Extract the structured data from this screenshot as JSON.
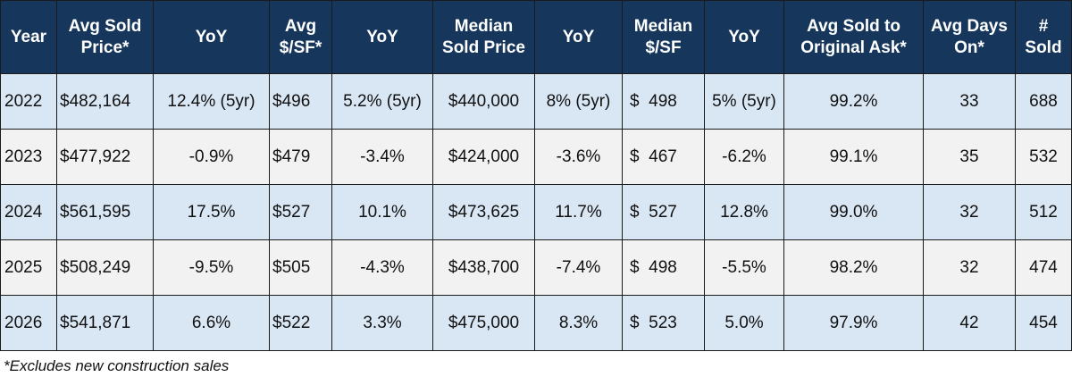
{
  "table": {
    "headers": [
      [
        "Year"
      ],
      [
        "Avg Sold",
        "Price*"
      ],
      [
        "YoY"
      ],
      [
        "Avg",
        "$/SF*"
      ],
      [
        "YoY"
      ],
      [
        "Median",
        "Sold Price"
      ],
      [
        "YoY"
      ],
      [
        "Median",
        "$/SF"
      ],
      [
        "YoY"
      ],
      [
        "Avg Sold to",
        "Original Ask*"
      ],
      [
        "Avg Days",
        "On*"
      ],
      [
        "#",
        "Sold"
      ]
    ],
    "rows": [
      [
        "2022",
        "$482,164",
        "12.4% (5yr)",
        "$496",
        "5.2% (5yr)",
        "$440,000",
        "8% (5yr)",
        "$  498",
        "5% (5yr)",
        "99.2%",
        "33",
        "688"
      ],
      [
        "2023",
        "$477,922",
        "-0.9%",
        "$479",
        "-3.4%",
        "$424,000",
        "-3.6%",
        "$  467",
        "-6.2%",
        "99.1%",
        "35",
        "532"
      ],
      [
        "2024",
        "$561,595",
        "17.5%",
        "$527",
        "10.1%",
        "$473,625",
        "11.7%",
        "$  527",
        "12.8%",
        "99.0%",
        "32",
        "512"
      ],
      [
        "2025",
        "$508,249",
        "-9.5%",
        "$505",
        "-4.3%",
        "$438,700",
        "-7.4%",
        "$  498",
        "-5.5%",
        "98.2%",
        "32",
        "474"
      ],
      [
        "2026",
        "$541,871",
        "6.6%",
        "$522",
        "3.3%",
        "$475,000",
        "8.3%",
        "$  523",
        "5.0%",
        "97.9%",
        "42",
        "454"
      ]
    ]
  },
  "footnote": "*Excludes new construction sales",
  "colors": {
    "header_bg": "#16365c",
    "header_text": "#ffffff",
    "row_shade": "#d9e6f4",
    "row_plain": "#f2f2f2"
  }
}
